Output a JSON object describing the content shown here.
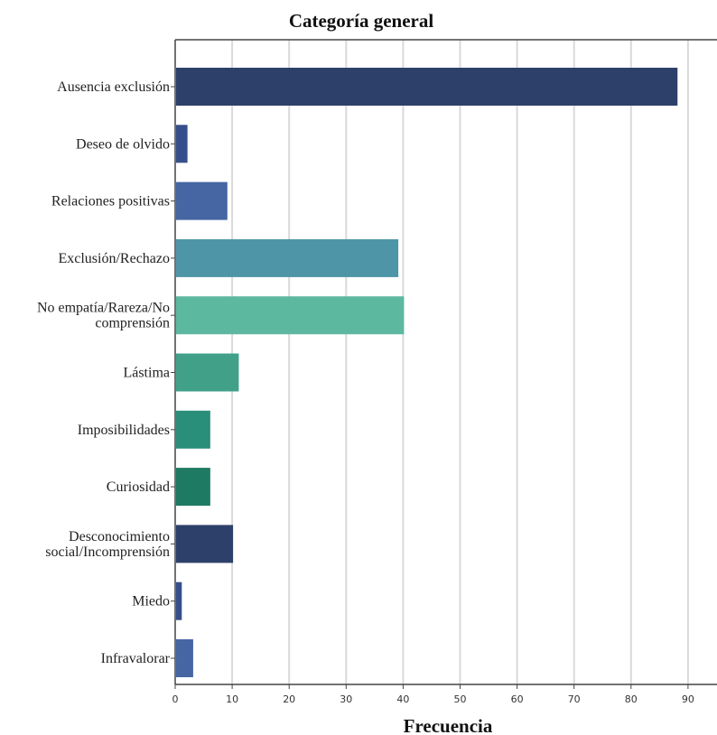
{
  "chart_data": {
    "type": "bar",
    "orientation": "horizontal",
    "title": "Categoría general",
    "xlabel": "Frecuencia",
    "ylabel": "",
    "xlim": [
      0,
      95
    ],
    "x_ticks": [
      0,
      10,
      20,
      30,
      40,
      50,
      60,
      70,
      80,
      90
    ],
    "grid": true,
    "legend": "none",
    "categories": [
      [
        "Ausencia exclusión"
      ],
      [
        "Deseo de olvido"
      ],
      [
        "Relaciones positivas"
      ],
      [
        "Exclusión/Rechazo"
      ],
      [
        "No empatía/Rareza/No",
        "comprensión"
      ],
      [
        "Lástima"
      ],
      [
        "Imposibilidades"
      ],
      [
        "Curiosidad"
      ],
      [
        "Desconocimiento",
        "social/Incomprensión"
      ],
      [
        "Miedo"
      ],
      [
        "Infravalorar"
      ]
    ],
    "values": [
      88,
      2,
      9,
      39,
      40,
      11,
      6,
      6,
      10,
      1,
      3
    ],
    "colors": [
      "#2d4069",
      "#354f8a",
      "#4566a3",
      "#4f95a8",
      "#5db8a0",
      "#40a088",
      "#2a8f7a",
      "#1e7a63",
      "#2d4069",
      "#354f8a",
      "#4566a3"
    ]
  }
}
